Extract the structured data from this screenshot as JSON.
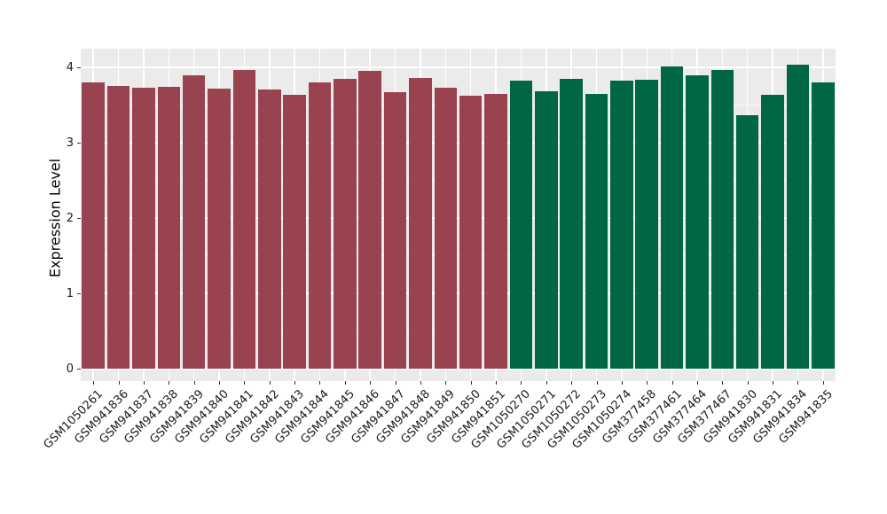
{
  "chart_data": {
    "type": "bar",
    "title": "",
    "xlabel": "",
    "ylabel": "Expression Level",
    "ylim": [
      -0.16,
      4.25
    ],
    "yticks": [
      0,
      1,
      2,
      3,
      4
    ],
    "minor_yticks": [
      0.5,
      1.5,
      2.5,
      3.5
    ],
    "grid": "major+minor horizontal, vertical at category centers",
    "legend": "none",
    "panel_background": "#EBEBEB",
    "grid_color": "#FFFFFF",
    "tick_color": "#333333",
    "label_color": "#1A1A1A",
    "palette": {
      "maroon": "#9A4350",
      "green": "#006646"
    },
    "categories": [
      "GSM1050261",
      "GSM941836",
      "GSM941837",
      "GSM941838",
      "GSM941839",
      "GSM941840",
      "GSM941841",
      "GSM941842",
      "GSM941843",
      "GSM941844",
      "GSM941845",
      "GSM941846",
      "GSM941847",
      "GSM941848",
      "GSM941849",
      "GSM941850",
      "GSM941851",
      "GSM1050270",
      "GSM1050271",
      "GSM1050272",
      "GSM1050273",
      "GSM1050274",
      "GSM377458",
      "GSM377461",
      "GSM377464",
      "GSM377467",
      "GSM941830",
      "GSM941831",
      "GSM941834",
      "GSM941835"
    ],
    "values": [
      3.8,
      3.75,
      3.73,
      3.74,
      3.9,
      3.72,
      3.97,
      3.71,
      3.63,
      3.8,
      3.85,
      3.95,
      3.67,
      3.86,
      3.73,
      3.62,
      3.65,
      3.82,
      3.68,
      3.85,
      3.65,
      3.82,
      3.84,
      4.01,
      3.9,
      3.97,
      3.37,
      3.64,
      4.03,
      3.8
    ],
    "groups": [
      "maroon",
      "maroon",
      "maroon",
      "maroon",
      "maroon",
      "maroon",
      "maroon",
      "maroon",
      "maroon",
      "maroon",
      "maroon",
      "maroon",
      "maroon",
      "maroon",
      "maroon",
      "maroon",
      "maroon",
      "green",
      "green",
      "green",
      "green",
      "green",
      "green",
      "green",
      "green",
      "green",
      "green",
      "green",
      "green",
      "green"
    ]
  }
}
